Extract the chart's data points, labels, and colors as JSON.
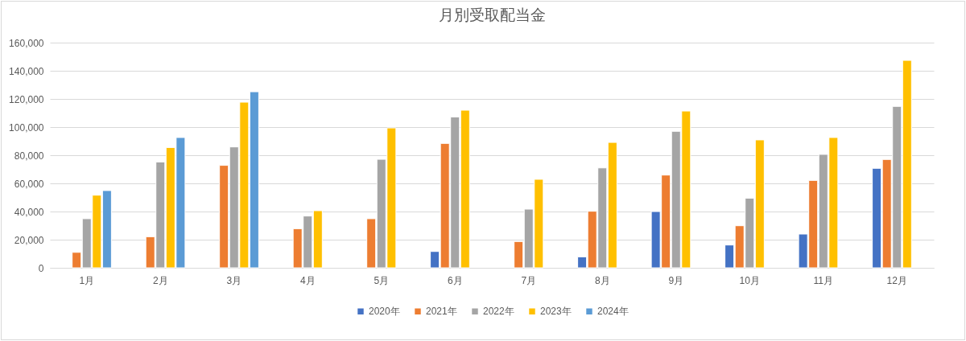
{
  "chart_data": {
    "type": "bar",
    "title": "月別受取配当金",
    "categories": [
      "1月",
      "2月",
      "3月",
      "4月",
      "5月",
      "6月",
      "7月",
      "8月",
      "9月",
      "10月",
      "11月",
      "12月"
    ],
    "series": [
      {
        "name": "2020年",
        "color": "#4472c4",
        "values": [
          null,
          null,
          null,
          null,
          null,
          11600,
          null,
          7800,
          40000,
          16200,
          24000,
          70700
        ]
      },
      {
        "name": "2021年",
        "color": "#ed7d31",
        "values": [
          11000,
          22100,
          72800,
          27800,
          34900,
          88400,
          18700,
          40200,
          65900,
          29900,
          62100,
          77000
        ]
      },
      {
        "name": "2022年",
        "color": "#a5a5a5",
        "values": [
          34900,
          75200,
          85900,
          36800,
          77100,
          107200,
          41700,
          71000,
          97000,
          49500,
          80600,
          114700
        ]
      },
      {
        "name": "2023年",
        "color": "#ffc000",
        "values": [
          51600,
          85500,
          117700,
          40600,
          99400,
          112000,
          62900,
          89100,
          111400,
          90900,
          92600,
          147400
        ]
      },
      {
        "name": "2024年",
        "color": "#5b9bd5",
        "values": [
          54900,
          92600,
          125100,
          null,
          null,
          null,
          null,
          null,
          null,
          null,
          null,
          null
        ]
      }
    ],
    "ylim": [
      0,
      160000
    ],
    "yticks": [
      0,
      {
        "value": 20000,
        "label": "20,000"
      },
      {
        "value": 40000,
        "label": "40,000"
      },
      {
        "value": 60000,
        "label": "60,000"
      },
      {
        "value": 80000,
        "label": "80,000"
      },
      {
        "value": 100000,
        "label": "100,000"
      },
      {
        "value": 120000,
        "label": "120,000"
      },
      {
        "value": 140000,
        "label": "140,000"
      },
      {
        "value": 160000,
        "label": "160,000"
      }
    ],
    "grid": "y",
    "legend": "bottom"
  }
}
